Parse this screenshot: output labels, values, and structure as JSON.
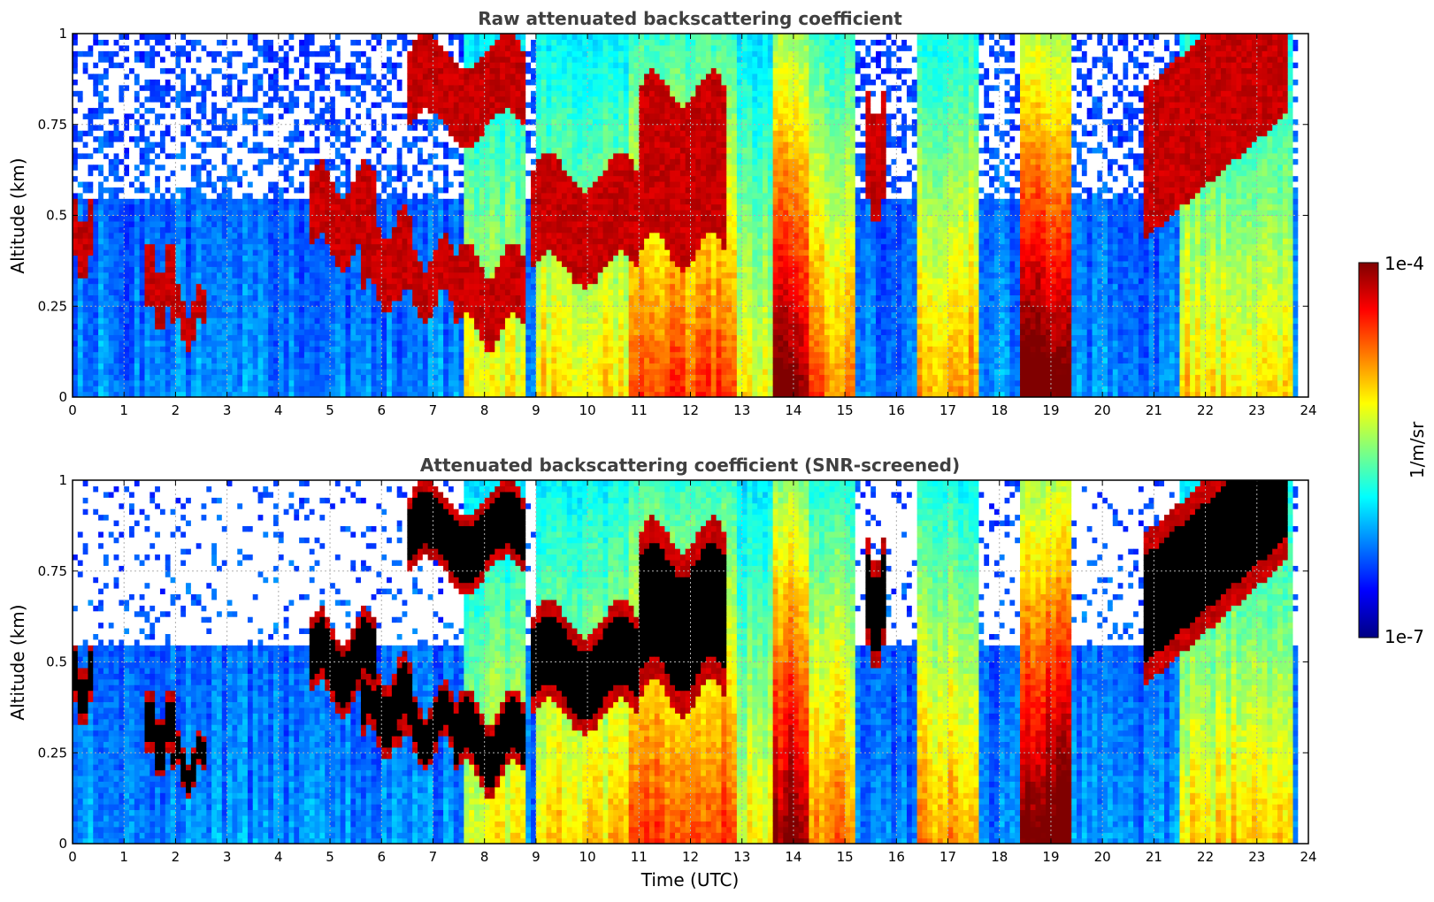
{
  "chart_data": [
    {
      "type": "heatmap",
      "title": "Raw attenuated backscattering coefficient",
      "xlabel": "",
      "ylabel": "Altitude (km)",
      "xlim": [
        0,
        24
      ],
      "ylim": [
        0,
        1
      ],
      "xticks": [
        "0",
        "1",
        "2",
        "3",
        "4",
        "5",
        "6",
        "7",
        "8",
        "9",
        "10",
        "11",
        "12",
        "13",
        "14",
        "15",
        "16",
        "17",
        "18",
        "19",
        "20",
        "21",
        "22",
        "23",
        "24"
      ],
      "yticks": [
        "0",
        "0.25",
        "0.5",
        "0.75",
        "1"
      ],
      "grid": true,
      "screened": false,
      "layers": [
        {
          "t": [
            0.0,
            0.4
          ],
          "base": 0.35,
          "top": 0.5
        },
        {
          "t": [
            1.4,
            2.0
          ],
          "base": 0.22,
          "top": 0.38
        },
        {
          "t": [
            1.9,
            2.6
          ],
          "base": 0.17,
          "top": 0.27
        },
        {
          "t": [
            4.6,
            5.9
          ],
          "base": 0.4,
          "top": 0.6
        },
        {
          "t": [
            5.6,
            6.6
          ],
          "base": 0.28,
          "top": 0.48
        },
        {
          "t": [
            6.3,
            7.4
          ],
          "base": 0.25,
          "top": 0.4
        },
        {
          "t": [
            6.5,
            8.8
          ],
          "base": 0.74,
          "top": 0.95
        },
        {
          "t": [
            7.4,
            8.8
          ],
          "base": 0.18,
          "top": 0.38
        },
        {
          "t": [
            8.9,
            11.0
          ],
          "base": 0.35,
          "top": 0.62
        },
        {
          "t": [
            11.0,
            12.7
          ],
          "base": 0.4,
          "top": 0.85
        },
        {
          "t": [
            15.4,
            15.8
          ],
          "base": 0.5,
          "top": 0.8
        },
        {
          "t": [
            20.8,
            23.6
          ],
          "base": 0.53,
          "top": 0.95
        }
      ],
      "plumes": [
        {
          "t": [
            7.6,
            8.8
          ],
          "level": 0.5
        },
        {
          "t": [
            9.0,
            10.8
          ],
          "level": 0.55
        },
        {
          "t": [
            10.8,
            12.9
          ],
          "level": 0.7
        },
        {
          "t": [
            12.9,
            13.6
          ],
          "level": 0.5
        },
        {
          "t": [
            13.6,
            14.3
          ],
          "level": 0.9
        },
        {
          "t": [
            14.3,
            15.2
          ],
          "level": 0.65
        },
        {
          "t": [
            16.4,
            17.6
          ],
          "level": 0.62
        },
        {
          "t": [
            18.4,
            19.4
          ],
          "level": 0.95
        },
        {
          "t": [
            21.5,
            23.7
          ],
          "level": 0.55
        }
      ]
    },
    {
      "type": "heatmap",
      "title": "Attenuated backscattering coefficient (SNR-screened)",
      "xlabel": "Time (UTC)",
      "ylabel": "Altitude (km)",
      "xlim": [
        0,
        24
      ],
      "ylim": [
        0,
        1
      ],
      "xticks": [
        "0",
        "1",
        "2",
        "3",
        "4",
        "5",
        "6",
        "7",
        "8",
        "9",
        "10",
        "11",
        "12",
        "13",
        "14",
        "15",
        "16",
        "17",
        "18",
        "19",
        "20",
        "21",
        "22",
        "23",
        "24"
      ],
      "yticks": [
        "0",
        "0.25",
        "0.5",
        "0.75",
        "1"
      ],
      "grid": true,
      "screened": true,
      "layers": [
        {
          "t": [
            0.0,
            0.4
          ],
          "base": 0.35,
          "top": 0.5
        },
        {
          "t": [
            1.4,
            2.0
          ],
          "base": 0.22,
          "top": 0.38
        },
        {
          "t": [
            1.9,
            2.6
          ],
          "base": 0.17,
          "top": 0.27
        },
        {
          "t": [
            4.6,
            5.9
          ],
          "base": 0.4,
          "top": 0.6
        },
        {
          "t": [
            5.6,
            6.6
          ],
          "base": 0.28,
          "top": 0.48
        },
        {
          "t": [
            6.3,
            7.4
          ],
          "base": 0.25,
          "top": 0.4
        },
        {
          "t": [
            6.5,
            8.8
          ],
          "base": 0.74,
          "top": 0.95
        },
        {
          "t": [
            7.4,
            8.8
          ],
          "base": 0.18,
          "top": 0.38
        },
        {
          "t": [
            8.9,
            11.0
          ],
          "base": 0.35,
          "top": 0.62
        },
        {
          "t": [
            11.0,
            12.7
          ],
          "base": 0.4,
          "top": 0.85
        },
        {
          "t": [
            15.4,
            15.8
          ],
          "base": 0.5,
          "top": 0.8
        },
        {
          "t": [
            20.8,
            23.6
          ],
          "base": 0.53,
          "top": 0.95
        }
      ],
      "plumes": [
        {
          "t": [
            7.6,
            8.8
          ],
          "level": 0.5
        },
        {
          "t": [
            9.0,
            10.8
          ],
          "level": 0.55
        },
        {
          "t": [
            10.8,
            12.9
          ],
          "level": 0.7
        },
        {
          "t": [
            12.9,
            13.6
          ],
          "level": 0.5
        },
        {
          "t": [
            13.6,
            14.3
          ],
          "level": 0.9
        },
        {
          "t": [
            14.3,
            15.2
          ],
          "level": 0.65
        },
        {
          "t": [
            16.4,
            17.6
          ],
          "level": 0.62
        },
        {
          "t": [
            18.4,
            19.4
          ],
          "level": 0.95
        },
        {
          "t": [
            21.5,
            23.7
          ],
          "level": 0.55
        }
      ]
    }
  ],
  "colorbar": {
    "label": "1/m/sr",
    "max_label": "1e-4",
    "min_label": "1e-7",
    "colormap": "jet",
    "scale": "log",
    "range": [
      1e-07,
      0.0001
    ]
  }
}
